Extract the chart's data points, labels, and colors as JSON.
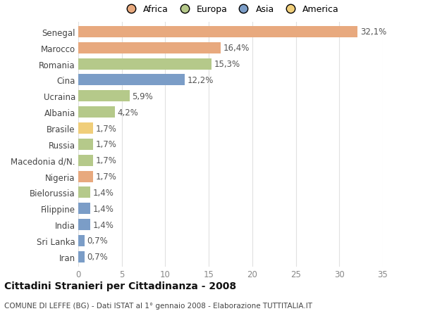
{
  "categories": [
    "Senegal",
    "Marocco",
    "Romania",
    "Cina",
    "Ucraina",
    "Albania",
    "Brasile",
    "Russia",
    "Macedonia d/N.",
    "Nigeria",
    "Bielorussia",
    "Filippine",
    "India",
    "Sri Lanka",
    "Iran"
  ],
  "values": [
    32.1,
    16.4,
    15.3,
    12.2,
    5.9,
    4.2,
    1.7,
    1.7,
    1.7,
    1.7,
    1.4,
    1.4,
    1.4,
    0.7,
    0.7
  ],
  "labels": [
    "32,1%",
    "16,4%",
    "15,3%",
    "12,2%",
    "5,9%",
    "4,2%",
    "1,7%",
    "1,7%",
    "1,7%",
    "1,7%",
    "1,4%",
    "1,4%",
    "1,4%",
    "0,7%",
    "0,7%"
  ],
  "colors": [
    "#E8A97E",
    "#E8A97E",
    "#B5C98A",
    "#7B9DC7",
    "#B5C98A",
    "#B5C98A",
    "#F0CE7A",
    "#B5C98A",
    "#B5C98A",
    "#E8A97E",
    "#B5C98A",
    "#7B9DC7",
    "#7B9DC7",
    "#7B9DC7",
    "#7B9DC7"
  ],
  "legend_labels": [
    "Africa",
    "Europa",
    "Asia",
    "America"
  ],
  "legend_colors": [
    "#E8A97E",
    "#B5C98A",
    "#7B9DC7",
    "#F0CE7A"
  ],
  "title": "Cittadini Stranieri per Cittadinanza - 2008",
  "subtitle": "COMUNE DI LEFFE (BG) - Dati ISTAT al 1° gennaio 2008 - Elaborazione TUTTITALIA.IT",
  "xlim": [
    0,
    35
  ],
  "xticks": [
    0,
    5,
    10,
    15,
    20,
    25,
    30,
    35
  ],
  "background_color": "#ffffff",
  "grid_color": "#e0e0e0",
  "bar_height": 0.7,
  "label_fontsize": 8.5,
  "ytick_fontsize": 8.5,
  "xtick_fontsize": 8.5
}
